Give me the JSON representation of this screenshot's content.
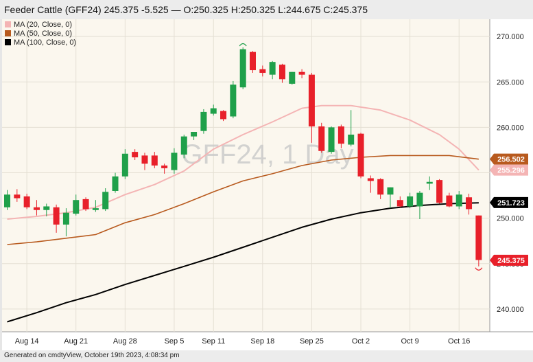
{
  "header": {
    "title": "Feeder Cattle (GFF24) 245.375 -5.525 — O:250.325 H:250.325 L:244.675 C:245.375"
  },
  "footer": {
    "text": "Generated on cmdtyView, October 19th 2023, 4:08:34 pm"
  },
  "colors": {
    "background": "#fbf7ee",
    "up": "#1fa04a",
    "down": "#e8202a",
    "ma20": "#f4b4b4",
    "ma50": "#b85a1e",
    "ma100": "#000000",
    "watermark": "#c9c9c9"
  },
  "chart_data": {
    "type": "candlestick",
    "watermark": "GFF24, 1 Day",
    "legend_position": "top-left",
    "legend": [
      {
        "label": "MA (20, Close, 0)",
        "color": "#f4b4b4"
      },
      {
        "label": "MA (50, Close, 0)",
        "color": "#b85a1e"
      },
      {
        "label": "MA (100, Close, 0)",
        "color": "#000000"
      }
    ],
    "y_ticks": [
      "240.000",
      "245.000",
      "250.000",
      "255.000",
      "260.000",
      "265.000",
      "270.000"
    ],
    "y_tick_values": [
      240,
      245,
      250,
      255,
      260,
      265,
      270
    ],
    "ylim": [
      237.5,
      271.9
    ],
    "x_ticks": [
      {
        "label": "Aug 14",
        "index": 2
      },
      {
        "label": "Aug 21",
        "index": 7
      },
      {
        "label": "Aug 28",
        "index": 12
      },
      {
        "label": "Sep 5",
        "index": 17
      },
      {
        "label": "Sep 11",
        "index": 21
      },
      {
        "label": "Sep 18",
        "index": 26
      },
      {
        "label": "Sep 25",
        "index": 31
      },
      {
        "label": "Oct 2",
        "index": 36
      },
      {
        "label": "Oct 9",
        "index": 41
      },
      {
        "label": "Oct 16",
        "index": 46
      }
    ],
    "price_labels": [
      {
        "text": "256.502",
        "value": 256.502,
        "series": "ma50"
      },
      {
        "text": "255.296",
        "value": 255.296,
        "series": "ma20"
      },
      {
        "text": "251.723",
        "value": 251.723,
        "series": "ma100"
      },
      {
        "text": "245.375",
        "value": 245.375,
        "series": "last"
      }
    ],
    "candles": [
      {
        "o": 251.2,
        "h": 253.1,
        "l": 250.9,
        "c": 252.6
      },
      {
        "o": 252.6,
        "h": 253.2,
        "l": 251.8,
        "c": 252.2
      },
      {
        "o": 252.4,
        "h": 252.7,
        "l": 251.0,
        "c": 251.2
      },
      {
        "o": 251.2,
        "h": 252.0,
        "l": 250.3,
        "c": 250.9
      },
      {
        "o": 250.9,
        "h": 251.6,
        "l": 250.2,
        "c": 251.3
      },
      {
        "o": 251.2,
        "h": 251.5,
        "l": 248.4,
        "c": 249.3
      },
      {
        "o": 249.3,
        "h": 251.1,
        "l": 248.0,
        "c": 250.6
      },
      {
        "o": 250.5,
        "h": 252.6,
        "l": 250.3,
        "c": 252.0
      },
      {
        "o": 252.1,
        "h": 252.3,
        "l": 250.8,
        "c": 251.0
      },
      {
        "o": 250.9,
        "h": 252.0,
        "l": 250.7,
        "c": 251.1
      },
      {
        "o": 251.0,
        "h": 253.3,
        "l": 250.8,
        "c": 252.9
      },
      {
        "o": 253.0,
        "h": 255.0,
        "l": 252.8,
        "c": 254.6
      },
      {
        "o": 254.6,
        "h": 257.6,
        "l": 254.3,
        "c": 257.1
      },
      {
        "o": 257.3,
        "h": 257.6,
        "l": 256.4,
        "c": 256.7
      },
      {
        "o": 256.9,
        "h": 257.2,
        "l": 255.3,
        "c": 256.0
      },
      {
        "o": 256.9,
        "h": 257.3,
        "l": 255.5,
        "c": 255.8
      },
      {
        "o": 255.8,
        "h": 256.0,
        "l": 254.9,
        "c": 255.5
      },
      {
        "o": 255.3,
        "h": 257.7,
        "l": 254.9,
        "c": 257.2
      },
      {
        "o": 257.0,
        "h": 259.2,
        "l": 256.6,
        "c": 259.0
      },
      {
        "o": 259.0,
        "h": 259.4,
        "l": 258.6,
        "c": 259.5
      },
      {
        "o": 259.6,
        "h": 262.0,
        "l": 259.3,
        "c": 261.7
      },
      {
        "o": 261.5,
        "h": 262.5,
        "l": 261.3,
        "c": 262.1
      },
      {
        "o": 261.8,
        "h": 261.9,
        "l": 260.7,
        "c": 260.9
      },
      {
        "o": 261.2,
        "h": 265.1,
        "l": 261.0,
        "c": 264.7
      },
      {
        "o": 264.4,
        "h": 268.8,
        "l": 264.2,
        "c": 268.6
      },
      {
        "o": 268.3,
        "h": 268.4,
        "l": 266.0,
        "c": 266.3
      },
      {
        "o": 266.4,
        "h": 266.8,
        "l": 265.6,
        "c": 266.0
      },
      {
        "o": 265.8,
        "h": 267.3,
        "l": 265.3,
        "c": 267.2
      },
      {
        "o": 266.9,
        "h": 267.0,
        "l": 264.9,
        "c": 265.3
      },
      {
        "o": 264.8,
        "h": 266.1,
        "l": 264.7,
        "c": 266.1
      },
      {
        "o": 266.1,
        "h": 266.4,
        "l": 265.4,
        "c": 265.8
      },
      {
        "o": 265.8,
        "h": 266.0,
        "l": 258.3,
        "c": 260.1
      },
      {
        "o": 260.1,
        "h": 260.5,
        "l": 257.2,
        "c": 257.4
      },
      {
        "o": 257.3,
        "h": 260.1,
        "l": 257.1,
        "c": 260.0
      },
      {
        "o": 260.1,
        "h": 260.3,
        "l": 257.7,
        "c": 258.2
      },
      {
        "o": 258.1,
        "h": 261.9,
        "l": 257.9,
        "c": 259.2
      },
      {
        "o": 259.3,
        "h": 259.4,
        "l": 254.4,
        "c": 254.6
      },
      {
        "o": 254.4,
        "h": 254.7,
        "l": 252.8,
        "c": 254.1
      },
      {
        "o": 254.3,
        "h": 254.4,
        "l": 252.1,
        "c": 252.6
      },
      {
        "o": 252.6,
        "h": 253.4,
        "l": 251.1,
        "c": 253.4
      },
      {
        "o": 252.0,
        "h": 252.4,
        "l": 251.2,
        "c": 251.3
      },
      {
        "o": 251.3,
        "h": 252.8,
        "l": 251.1,
        "c": 252.4
      },
      {
        "o": 251.3,
        "h": 253.0,
        "l": 249.9,
        "c": 252.8
      },
      {
        "o": 253.8,
        "h": 254.6,
        "l": 253.1,
        "c": 254.0
      },
      {
        "o": 254.2,
        "h": 254.3,
        "l": 251.6,
        "c": 251.7
      },
      {
        "o": 252.5,
        "h": 252.8,
        "l": 251.2,
        "c": 251.3
      },
      {
        "o": 251.3,
        "h": 253.0,
        "l": 251.0,
        "c": 252.6
      },
      {
        "o": 252.3,
        "h": 252.7,
        "l": 250.4,
        "c": 251.0
      },
      {
        "o": 250.3,
        "h": 250.3,
        "l": 244.7,
        "c": 245.4
      }
    ],
    "ma20": [
      [
        0,
        249.9
      ],
      [
        3,
        250.2
      ],
      [
        6,
        250.6
      ],
      [
        9,
        251.2
      ],
      [
        12,
        252.6
      ],
      [
        15,
        253.7
      ],
      [
        18,
        255.2
      ],
      [
        21,
        257.6
      ],
      [
        24,
        259.2
      ],
      [
        27,
        260.6
      ],
      [
        30,
        262.1
      ],
      [
        32,
        262.4
      ],
      [
        35,
        262.4
      ],
      [
        38,
        261.9
      ],
      [
        41,
        260.8
      ],
      [
        44,
        259.2
      ],
      [
        46,
        257.6
      ],
      [
        48,
        255.3
      ]
    ],
    "ma50": [
      [
        0,
        247.1
      ],
      [
        3,
        247.4
      ],
      [
        6,
        247.8
      ],
      [
        9,
        248.2
      ],
      [
        12,
        249.5
      ],
      [
        15,
        250.4
      ],
      [
        18,
        251.6
      ],
      [
        21,
        252.9
      ],
      [
        24,
        254.1
      ],
      [
        27,
        254.9
      ],
      [
        30,
        255.8
      ],
      [
        33,
        256.4
      ],
      [
        36,
        256.7
      ],
      [
        39,
        256.9
      ],
      [
        42,
        256.9
      ],
      [
        45,
        256.9
      ],
      [
        48,
        256.5
      ]
    ],
    "ma100": [
      [
        0,
        238.6
      ],
      [
        3,
        239.6
      ],
      [
        6,
        240.7
      ],
      [
        9,
        241.6
      ],
      [
        12,
        242.7
      ],
      [
        15,
        243.7
      ],
      [
        18,
        244.7
      ],
      [
        21,
        245.7
      ],
      [
        24,
        246.8
      ],
      [
        27,
        247.9
      ],
      [
        30,
        249.0
      ],
      [
        33,
        249.9
      ],
      [
        36,
        250.6
      ],
      [
        39,
        251.1
      ],
      [
        42,
        251.4
      ],
      [
        45,
        251.6
      ],
      [
        48,
        251.7
      ]
    ]
  }
}
